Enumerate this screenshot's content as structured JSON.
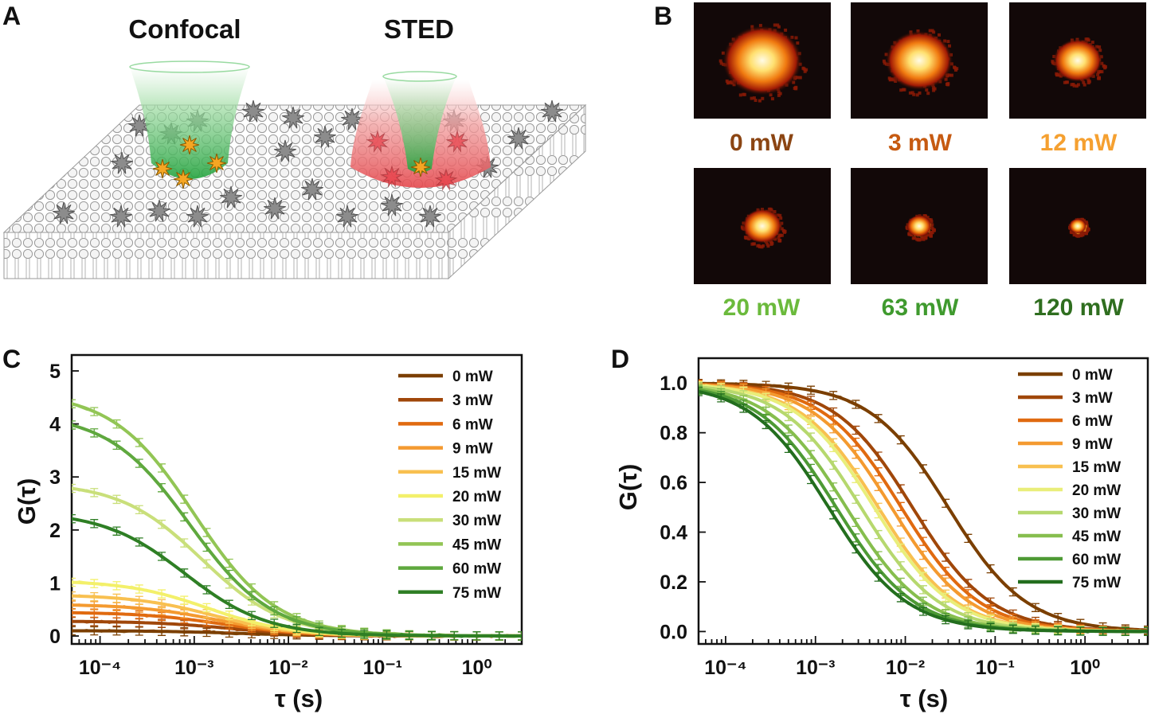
{
  "panels": {
    "a": {
      "letter": "A",
      "confocal_title": "Confocal",
      "sted_title": "STED",
      "colors": {
        "membrane": "#e8e8e8",
        "molecule": "#8c8c8c",
        "bright": "#f5a623",
        "confocal": "#3db24b",
        "sted": "#ee5a5a"
      }
    },
    "b": {
      "letter": "B",
      "tiles": [
        {
          "label": "0 mW",
          "color": "#8B4513",
          "spot": 1.0
        },
        {
          "label": "3 mW",
          "color": "#C65A11",
          "spot": 0.85
        },
        {
          "label": "12 mW",
          "color": "#F5A030",
          "spot": 0.62
        },
        {
          "label": "20 mW",
          "color": "#6BBA3C",
          "spot": 0.5
        },
        {
          "label": "63 mW",
          "color": "#3F9A2E",
          "spot": 0.32
        },
        {
          "label": "120 mW",
          "color": "#2F6E1F",
          "spot": 0.22
        }
      ]
    },
    "c": {
      "letter": "C",
      "chart_data": {
        "type": "line",
        "title": "",
        "xlabel": "τ (s)",
        "ylabel": "G(τ)",
        "xscale": "log",
        "xlim": [
          5e-05,
          3
        ],
        "ylim": [
          -0.15,
          5.3
        ],
        "x_tick_labels": [
          "10⁻⁴",
          "10⁻³",
          "10⁻²",
          "10⁻¹",
          "10⁰"
        ],
        "x_ticks": [
          0.0001,
          0.001,
          0.01,
          0.1,
          1
        ],
        "y_ticks": [
          0,
          1,
          2,
          3,
          4,
          5
        ],
        "y_tick_labels": [
          "0",
          "1",
          "2",
          "3",
          "4",
          "5"
        ],
        "legend_position": "top-right",
        "series": [
          {
            "name": "0 mW",
            "color": "#7B3F00",
            "amplitude": 0.1,
            "tau_d": 0.003
          },
          {
            "name": "3 mW",
            "color": "#A0470A",
            "amplitude": 0.28,
            "tau_d": 0.0025
          },
          {
            "name": "6 mW",
            "color": "#E06A10",
            "amplitude": 0.45,
            "tau_d": 0.002
          },
          {
            "name": "9 mW",
            "color": "#F49A30",
            "amplitude": 0.6,
            "tau_d": 0.0018
          },
          {
            "name": "15 mW",
            "color": "#F8C050",
            "amplitude": 0.78,
            "tau_d": 0.0016
          },
          {
            "name": "20 mW",
            "color": "#F3F06A",
            "amplitude": 1.05,
            "tau_d": 0.0014
          },
          {
            "name": "30 mW",
            "color": "#C9DF7A",
            "amplitude": 2.9,
            "tau_d": 0.0012
          },
          {
            "name": "45 mW",
            "color": "#92C555",
            "amplitude": 4.6,
            "tau_d": 0.001
          },
          {
            "name": "60 mW",
            "color": "#5FA83E",
            "amplitude": 4.2,
            "tau_d": 0.0009
          },
          {
            "name": "75 mW",
            "color": "#2F7F25",
            "amplitude": 2.35,
            "tau_d": 0.0008
          }
        ]
      }
    },
    "d": {
      "letter": "D",
      "chart_data": {
        "type": "line",
        "title": "",
        "xlabel": "τ (s)",
        "ylabel": "G(τ)",
        "xscale": "log",
        "xlim": [
          5e-05,
          5
        ],
        "ylim": [
          -0.05,
          1.1
        ],
        "x_tick_labels": [
          "10⁻⁴",
          "10⁻³",
          "10⁻²",
          "10⁻¹",
          "10⁰"
        ],
        "x_ticks": [
          0.0001,
          0.001,
          0.01,
          0.1,
          1
        ],
        "y_ticks": [
          0.0,
          0.2,
          0.4,
          0.6,
          0.8,
          1.0
        ],
        "y_tick_labels": [
          "0.0",
          "0.2",
          "0.4",
          "0.6",
          "0.8",
          "1.0"
        ],
        "legend_position": "top-right",
        "series": [
          {
            "name": "0 mW",
            "color": "#7B3F00",
            "amplitude": 1.0,
            "tau_d": 0.03
          },
          {
            "name": "3 mW",
            "color": "#A0470A",
            "amplitude": 1.0,
            "tau_d": 0.012
          },
          {
            "name": "6 mW",
            "color": "#E06A10",
            "amplitude": 1.0,
            "tau_d": 0.009
          },
          {
            "name": "9 mW",
            "color": "#F49A30",
            "amplitude": 1.0,
            "tau_d": 0.007
          },
          {
            "name": "15 mW",
            "color": "#F8C050",
            "amplitude": 1.0,
            "tau_d": 0.005
          },
          {
            "name": "20 mW",
            "color": "#E9EE7A",
            "amplitude": 1.0,
            "tau_d": 0.0045
          },
          {
            "name": "30 mW",
            "color": "#B6D86E",
            "amplitude": 1.0,
            "tau_d": 0.0032
          },
          {
            "name": "45 mW",
            "color": "#86BE4E",
            "amplitude": 1.0,
            "tau_d": 0.0022
          },
          {
            "name": "60 mW",
            "color": "#4E9A35",
            "amplitude": 1.0,
            "tau_d": 0.0017
          },
          {
            "name": "75 mW",
            "color": "#236E1E",
            "amplitude": 1.0,
            "tau_d": 0.0014
          }
        ]
      }
    }
  }
}
